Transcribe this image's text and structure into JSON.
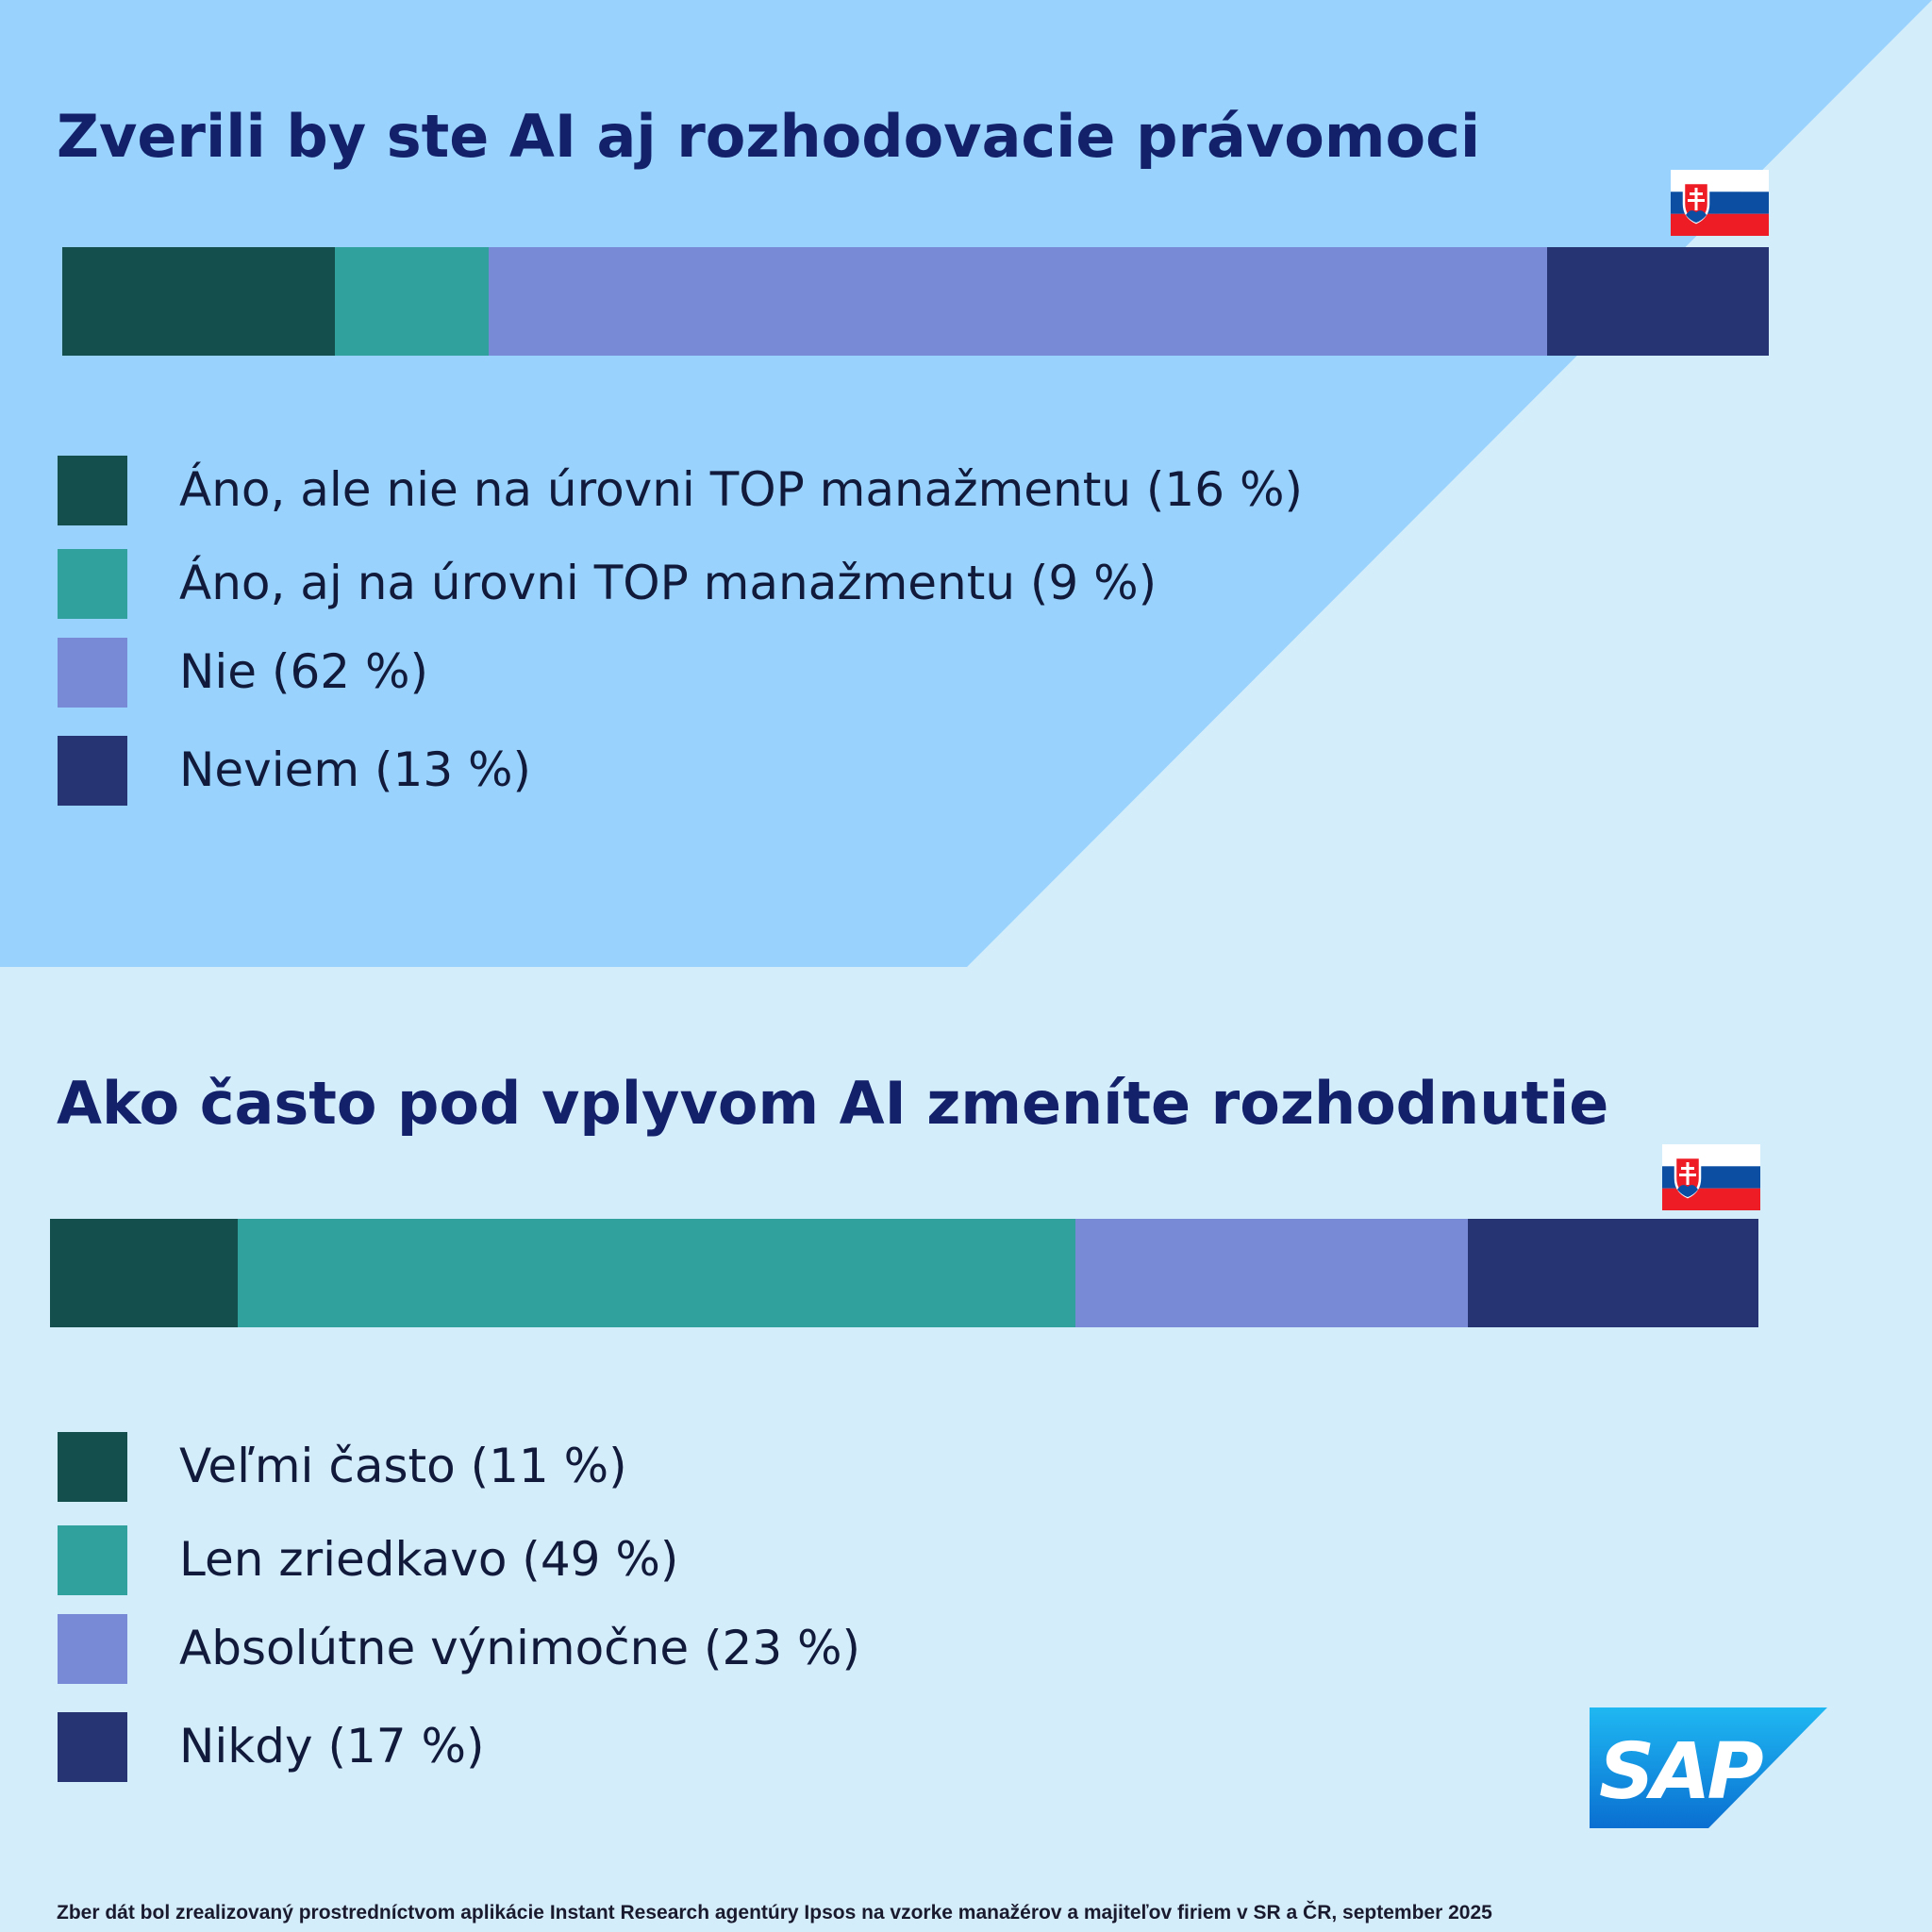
{
  "colors": {
    "background": "#d4edfb",
    "panel": "#98d2fd",
    "title": "#13206a",
    "series": [
      "#144f4d",
      "#30a19c",
      "#7889d6",
      "#263473"
    ]
  },
  "chart_data": [
    {
      "type": "bar",
      "orientation": "horizontal-stacked",
      "title": "Zverili by ste AI aj rozhodovacie právomoci",
      "categories": [
        "Áno, ale nie na úrovni TOP manažmentu",
        "Áno, aj na úrovni TOP manažmentu",
        "Nie",
        "Neviem"
      ],
      "values": [
        16,
        9,
        62,
        13
      ],
      "legend": [
        "Áno, ale nie na úrovni TOP manažmentu (16 %)",
        "Áno, aj na úrovni TOP manažmentu (9 %)",
        "Nie (62 %)",
        "Neviem (13 %)"
      ],
      "unit": "%"
    },
    {
      "type": "bar",
      "orientation": "horizontal-stacked",
      "title": "Ako často pod vplyvom AI zmeníte rozhodnutie",
      "categories": [
        "Veľmi často",
        "Len zriedkavo",
        "Absolútne výnimočne",
        "Nikdy"
      ],
      "values": [
        11,
        49,
        23,
        17
      ],
      "legend": [
        "Veľmi často (11 %)",
        "Len zriedkavo (49 %)",
        "Absolútne výnimočne (23 %)",
        "Nikdy (17 %)"
      ],
      "unit": "%"
    }
  ],
  "logo": {
    "text": "SAP"
  },
  "footnote": "Zber dát bol zrealizovaný prostredníctvom aplikácie Instant Research agentúry Ipsos na vzorke manažérov a majiteľov firiem v SR a ČR, september 2025"
}
